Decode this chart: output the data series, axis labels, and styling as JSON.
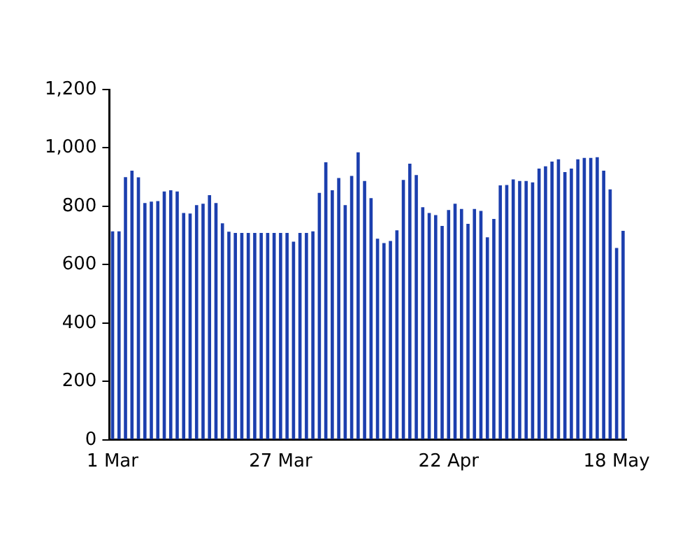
{
  "chart_data": {
    "type": "bar",
    "categories": [
      "1 Mar",
      null,
      null,
      null,
      null,
      null,
      null,
      null,
      null,
      null,
      null,
      null,
      null,
      null,
      null,
      null,
      null,
      null,
      null,
      null,
      null,
      null,
      null,
      null,
      null,
      null,
      "27 Mar",
      null,
      null,
      null,
      null,
      null,
      null,
      null,
      null,
      null,
      null,
      null,
      null,
      null,
      null,
      null,
      null,
      null,
      null,
      null,
      null,
      null,
      null,
      null,
      null,
      null,
      "22 Apr",
      null,
      null,
      null,
      null,
      null,
      null,
      null,
      null,
      null,
      null,
      null,
      null,
      null,
      null,
      null,
      null,
      null,
      null,
      null,
      null,
      null,
      null,
      null,
      null,
      null,
      "18 May",
      null
    ],
    "values": [
      714,
      714,
      900,
      922,
      899,
      811,
      816,
      818,
      851,
      855,
      851,
      777,
      775,
      804,
      809,
      838,
      811,
      742,
      713,
      709,
      709,
      709,
      709,
      709,
      709,
      709,
      709,
      709,
      679,
      709,
      709,
      714,
      846,
      951,
      855,
      897,
      804,
      904,
      985,
      887,
      828,
      689,
      674,
      681,
      718,
      890,
      946,
      907,
      797,
      777,
      770,
      733,
      787,
      809,
      791,
      740,
      791,
      784,
      694,
      757,
      872,
      873,
      892,
      887,
      887,
      882,
      929,
      937,
      953,
      961,
      917,
      929,
      961,
      966,
      966,
      968,
      922,
      858,
      657,
      716
    ],
    "color": "#1c3fae",
    "ylim": [
      0,
      1200
    ],
    "yticks": [
      0,
      200,
      400,
      600,
      800,
      {
        "value": 1000,
        "label": "1,000"
      },
      {
        "value": 1200,
        "label": "1,200"
      }
    ]
  }
}
